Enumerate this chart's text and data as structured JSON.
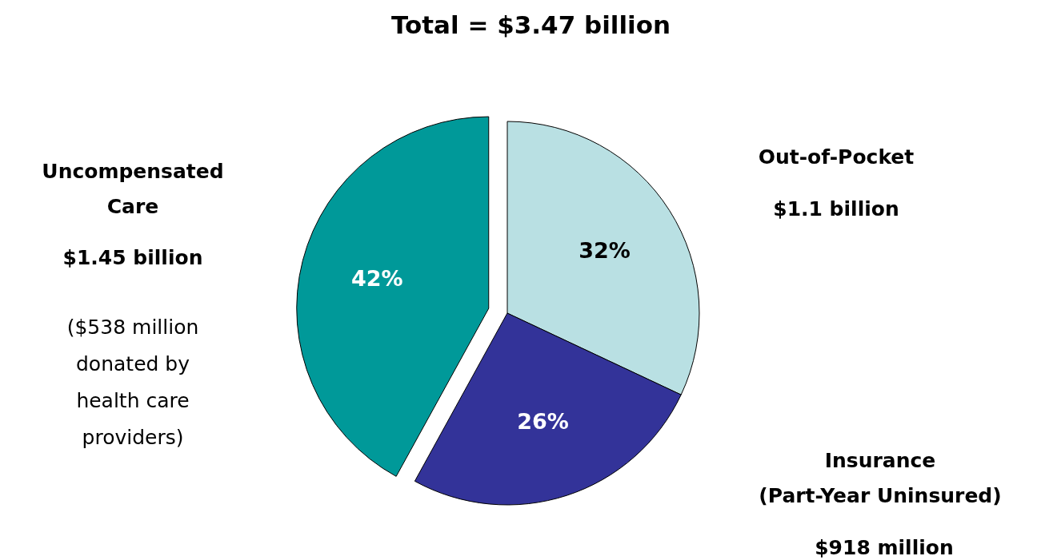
{
  "chart_data": {
    "type": "pie",
    "title": "Total = $3.47 billion",
    "categories": [
      "Out-of-Pocket",
      "Insurance\n(Part-Year Uninsured)",
      "Uncompensated\nCare"
    ],
    "values": [
      32,
      26,
      42
    ],
    "colors": [
      "#b9e0e3",
      "#333399",
      "#009999"
    ],
    "value_labels": [
      "32%",
      "26%",
      "42%"
    ],
    "annotations": [
      "$1.1 billion",
      "$918 million",
      "$1.45 billion",
      "($538 million\ndonated by\nhealth care\nproviders)"
    ]
  }
}
